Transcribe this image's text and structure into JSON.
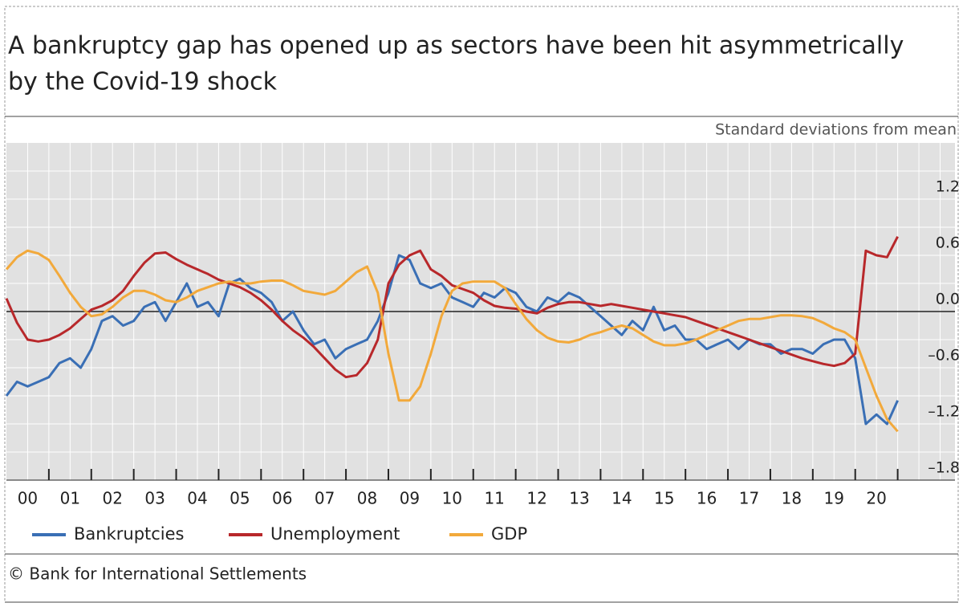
{
  "chart_data": {
    "type": "line",
    "title": [
      "A bankruptcy gap has opened up as sectors have been hit asymmetrically",
      "by the Covid-19 shock"
    ],
    "y_label": "Standard deviations from mean",
    "source": "© Bank for International Settlements",
    "categories": [
      "00",
      "01",
      "02",
      "03",
      "04",
      "05",
      "06",
      "07",
      "08",
      "09",
      "10",
      "11",
      "12",
      "13",
      "14",
      "15",
      "16",
      "17",
      "18",
      "19",
      "20"
    ],
    "xlim": [
      2000,
      2022.35
    ],
    "ylim": [
      -1.8,
      1.8
    ],
    "yticks": [
      {
        "value": -1.8,
        "label": "–1.8"
      },
      {
        "value": -1.2,
        "label": "–1.2"
      },
      {
        "value": -0.6,
        "label": "–0.6"
      },
      {
        "value": 0,
        "label": "0.0"
      },
      0.6,
      1.2
    ],
    "grid": true,
    "legend": "bottom",
    "x": [
      2000,
      2000.25,
      2000.5,
      2000.75,
      2001,
      2001.25,
      2001.5,
      2001.75,
      2002,
      2002.25,
      2002.5,
      2002.75,
      2003,
      2003.25,
      2003.5,
      2003.75,
      2004,
      2004.25,
      2004.5,
      2004.75,
      2005,
      2005.25,
      2005.5,
      2005.75,
      2006,
      2006.25,
      2006.5,
      2006.75,
      2007,
      2007.25,
      2007.5,
      2007.75,
      2008,
      2008.25,
      2008.5,
      2008.75,
      2009,
      2009.25,
      2009.5,
      2009.75,
      2010,
      2010.25,
      2010.5,
      2010.75,
      2011,
      2011.25,
      2011.5,
      2011.75,
      2012,
      2012.25,
      2012.5,
      2012.75,
      2013,
      2013.25,
      2013.5,
      2013.75,
      2014,
      2014.25,
      2014.5,
      2014.75,
      2015,
      2015.25,
      2015.5,
      2015.75,
      2016,
      2016.25,
      2016.5,
      2016.75,
      2017,
      2017.25,
      2017.5,
      2017.75,
      2018,
      2018.25,
      2018.5,
      2018.75,
      2019,
      2019.25,
      2019.5,
      2019.75,
      2020,
      2020.25,
      2020.5,
      2020.75,
      2021
    ],
    "series": [
      {
        "name": "Bankruptcies",
        "color": "#3a6fb5",
        "values": [
          -0.9,
          -0.75,
          -0.8,
          -0.75,
          -0.7,
          -0.55,
          -0.5,
          -0.6,
          -0.4,
          -0.1,
          -0.05,
          -0.15,
          -0.1,
          0.05,
          0.1,
          -0.1,
          0.1,
          0.3,
          0.05,
          0.1,
          -0.05,
          0.3,
          0.35,
          0.25,
          0.2,
          0.1,
          -0.1,
          0.0,
          -0.2,
          -0.35,
          -0.3,
          -0.5,
          -0.4,
          -0.35,
          -0.3,
          -0.1,
          0.2,
          0.6,
          0.55,
          0.3,
          0.25,
          0.3,
          0.15,
          0.1,
          0.05,
          0.2,
          0.15,
          0.25,
          0.2,
          0.05,
          0.0,
          0.15,
          0.1,
          0.2,
          0.15,
          0.05,
          -0.05,
          -0.15,
          -0.25,
          -0.1,
          -0.2,
          0.05,
          -0.2,
          -0.15,
          -0.3,
          -0.3,
          -0.4,
          -0.35,
          -0.3,
          -0.4,
          -0.3,
          -0.35,
          -0.35,
          -0.45,
          -0.4,
          -0.4,
          -0.45,
          -0.35,
          -0.3,
          -0.3,
          -0.5,
          -1.2,
          -1.1,
          -1.2,
          -0.95
        ]
      },
      {
        "name": "Unemployment",
        "color": "#b8282b",
        "values": [
          0.14,
          -0.12,
          -0.3,
          -0.32,
          -0.3,
          -0.25,
          -0.18,
          -0.08,
          0.02,
          0.06,
          0.12,
          0.22,
          0.38,
          0.52,
          0.62,
          0.63,
          0.56,
          0.5,
          0.45,
          0.4,
          0.34,
          0.3,
          0.26,
          0.2,
          0.12,
          0.02,
          -0.1,
          -0.2,
          -0.28,
          -0.38,
          -0.5,
          -0.62,
          -0.7,
          -0.68,
          -0.55,
          -0.3,
          0.3,
          0.5,
          0.6,
          0.65,
          0.45,
          0.38,
          0.28,
          0.24,
          0.2,
          0.12,
          0.06,
          0.04,
          0.03,
          0.0,
          -0.02,
          0.04,
          0.08,
          0.1,
          0.1,
          0.08,
          0.06,
          0.08,
          0.06,
          0.04,
          0.02,
          0.0,
          -0.02,
          -0.04,
          -0.06,
          -0.1,
          -0.14,
          -0.18,
          -0.22,
          -0.26,
          -0.3,
          -0.34,
          -0.38,
          -0.42,
          -0.46,
          -0.5,
          -0.53,
          -0.56,
          -0.58,
          -0.55,
          -0.45,
          0.65,
          0.6,
          0.58,
          0.8
        ]
      },
      {
        "name": "GDP",
        "color": "#f2a93b",
        "values": [
          0.45,
          0.58,
          0.65,
          0.62,
          0.55,
          0.38,
          0.2,
          0.05,
          -0.05,
          -0.03,
          0.05,
          0.15,
          0.22,
          0.22,
          0.18,
          0.12,
          0.1,
          0.15,
          0.22,
          0.26,
          0.3,
          0.32,
          0.3,
          0.3,
          0.32,
          0.33,
          0.33,
          0.28,
          0.22,
          0.2,
          0.18,
          0.22,
          0.32,
          0.42,
          0.48,
          0.2,
          -0.45,
          -0.95,
          -0.95,
          -0.8,
          -0.45,
          -0.05,
          0.22,
          0.3,
          0.32,
          0.32,
          0.32,
          0.25,
          0.08,
          -0.08,
          -0.2,
          -0.28,
          -0.32,
          -0.33,
          -0.3,
          -0.25,
          -0.22,
          -0.18,
          -0.15,
          -0.18,
          -0.25,
          -0.32,
          -0.36,
          -0.36,
          -0.34,
          -0.3,
          -0.25,
          -0.2,
          -0.15,
          -0.1,
          -0.08,
          -0.08,
          -0.06,
          -0.04,
          -0.04,
          -0.05,
          -0.07,
          -0.12,
          -0.18,
          -0.22,
          -0.3,
          -0.6,
          -0.9,
          -1.15,
          -1.28
        ]
      }
    ]
  }
}
